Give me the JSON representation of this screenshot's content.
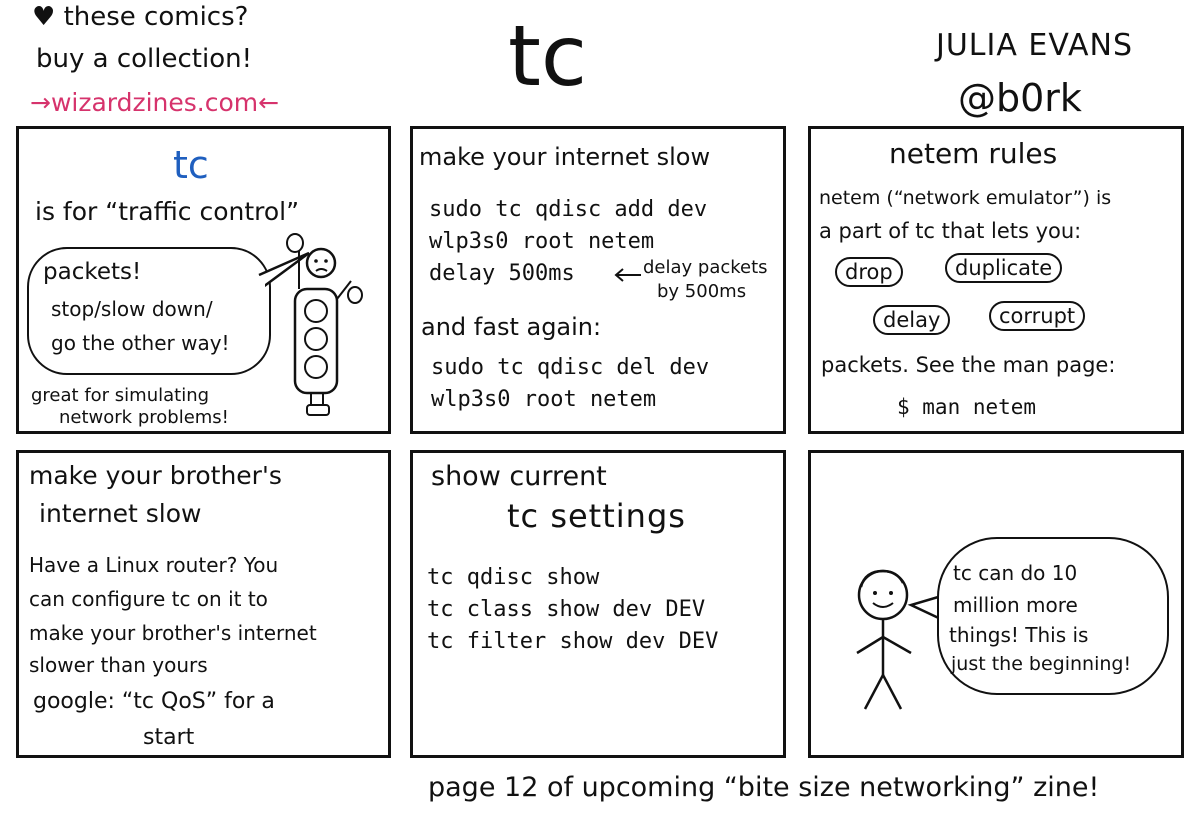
{
  "header": {
    "promo_line1": "♥ these comics?",
    "promo_line2": "buy a collection!",
    "promo_link": "→wizardzines.com←",
    "title": "tc",
    "author": "JULIA EVANS",
    "handle": "@b0rk"
  },
  "panel1": {
    "title": "tc",
    "subtitle": "is for “traffic control”",
    "bubble_line1": "packets!",
    "bubble_line2": "stop/slow down/",
    "bubble_line3": "go the other way!",
    "note_line1": "great for simulating",
    "note_line2": "network problems!"
  },
  "panel2": {
    "heading": "make your internet slow",
    "cmd1_line1": "sudo tc qdisc add dev",
    "cmd1_line2": "wlp3s0 root netem",
    "cmd1_line3": "delay 500ms",
    "note_line1": "delay packets",
    "note_line2": "by 500ms",
    "subheading": "and fast again:",
    "cmd2_line1": "sudo tc qdisc del dev",
    "cmd2_line2": "wlp3s0 root netem"
  },
  "panel3": {
    "heading": "netem rules",
    "text_line1": "netem (“network emulator”) is",
    "text_line2": "a part of tc that lets you:",
    "chips": [
      "drop",
      "duplicate",
      "delay",
      "corrupt"
    ],
    "after_line": "packets. See the man page:",
    "command": "$ man netem"
  },
  "panel4": {
    "heading_line1": "make your brother's",
    "heading_line2": "internet slow",
    "body_line1": "Have a Linux router? You",
    "body_line2": "can configure tc on it to",
    "body_line3": "make your brother's internet",
    "body_line4": "slower than yours",
    "google_line1": "google: “tc QoS” for a",
    "google_line2": "start"
  },
  "panel5": {
    "heading_line1": "show current",
    "heading_line2": "tc settings",
    "cmd1": "tc qdisc show",
    "cmd2": "tc class show dev DEV",
    "cmd3": "tc filter show dev DEV"
  },
  "panel6": {
    "bubble_line1": "tc can do  10",
    "bubble_line2": "million more",
    "bubble_line3": "things! This is",
    "bubble_line4": "just the beginning!"
  },
  "footer": {
    "text": "page 12 of upcoming “bite size networking” zine!"
  },
  "colors": {
    "link": "#d6336c",
    "tc_title": "#1f5fbf",
    "ink": "#111111"
  }
}
